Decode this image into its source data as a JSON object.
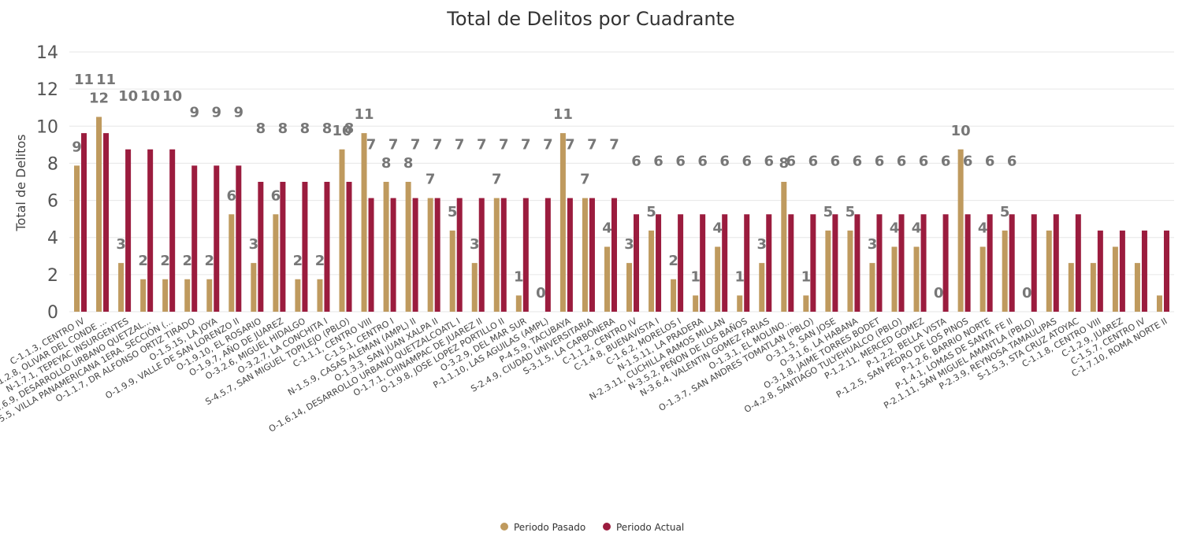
{
  "chart_data": {
    "type": "bar",
    "title": "Total de Delitos por Cuadrante",
    "xlabel": "",
    "ylabel": "Total de Delitos",
    "ylim": [
      0,
      14
    ],
    "yticks": [
      0,
      2,
      4,
      6,
      8,
      10,
      12,
      14
    ],
    "grid": true,
    "legend_position": "bottom-center",
    "categories": [
      "C-1.1.3, CENTRO IV",
      "P-1.2.8, OLIVAR DEL CONDE ...",
      "N-1.7.1, TEPEYAC INSURGENTES",
      "O-1.6.9, DESARROLLO URBANO QUETZAL...",
      "S-2.5.5, VILLA PANAMERICANA 1ERA. SECCIÓN (...",
      "O-1.1.7, DR ALFONSO ORTIZ TIRADO",
      "O-1.5.15, LA JOYA",
      "O-1.9.9, VALLE DE SAN LORENZO II",
      "O-1.9.10, EL ROSARIO",
      "O-1.9.7, AÑO DE JUAREZ",
      "O-3.2.6, MIGUEL HIDALGO",
      "O-3.2.7, LA CONCHITA I",
      "S-4.5.7, SAN MIGUEL TOPILEJO (PBLO)",
      "C-1.1.1, CENTRO VIII",
      "C-1.5.1, CENTRO I",
      "N-1.5.9, CASAS ALEMAN (AMPL) II",
      "O-1.3.3, SAN JUAN XALPA II",
      "O-1.6.14, DESARROLLO URBANO QUETZALCOATL I",
      "O-1.7.1, CHINAMPAC DE JUAREZ II",
      "O-1.9.8, JOSE LOPEZ PORTILLO II",
      "O-3.2.9, DEL MAR SUR",
      "P-1.1.10, LAS AGUILAS (AMPL)",
      "P-4.5.9, TACUBAYA",
      "S-2.4.9, CIUDAD UNIVERSITARIA",
      "S-3.1.5, LA CARBONERA",
      "C-1.1.2, CENTRO IV",
      "C-1.4.8, BUENAVISTA I",
      "C-1.6.2, MORELOS I",
      "N-1.5.11, LA PRADERA",
      "N-2.3.11, CUCHILLA RAMOS MILLAN",
      "N-3.5.2, PEÑON DE LOS BAÑOS",
      "N-3.6.4, VALENTIN GOMEZ FARIAS",
      "O-1.3.1, EL MOLINO...",
      "O-1.3.7, SAN ANDRES TOMATLAN (PBLO)",
      "O-3.1.5, SAN JOSE",
      "O-3.1.6, LA HABANA",
      "O-3.1.8, JAIME TORRES BODET",
      "O-4.2.8, SANTIAGO TULYEHUALCO (PBLO)",
      "P-1.2.11, MERCED GOMEZ",
      "P-1.2.2, BELLA VISTA",
      "P-1.2.5, SAN PEDRO DE LOS PINOS",
      "P-1.2.6, BARRIO NORTE",
      "P-1.4.1, LOMAS DE SANTA FE II",
      "P-2.1.11, SAN MIGUEL AMANTLA (PBLO)",
      "P-2.3.9, REYNOSA TAMAULIPAS",
      "S-1.5.3, STA CRUZ ATOYAC",
      "C-1.1.8, CENTRO VIII",
      "C-1.2.9, JUAREZ",
      "C-1.5.7, CENTRO IV",
      "C-1.7.10, ROMA NORTE II"
    ],
    "series": [
      {
        "name": "Periodo Pasado",
        "color": "#bf9a5e",
        "values": [
          9,
          12,
          3,
          2,
          2,
          2,
          2,
          6,
          3,
          6,
          2,
          2,
          10,
          11,
          8,
          8,
          7,
          5,
          3,
          7,
          1,
          0,
          11,
          7,
          4,
          3,
          5,
          2,
          1,
          4,
          1,
          3,
          8,
          1,
          5,
          5,
          3,
          4,
          4,
          0,
          10,
          4,
          5,
          0,
          5,
          3,
          3,
          4,
          3,
          1
        ]
      },
      {
        "name": "Periodo Actual",
        "color": "#9b1c3e",
        "values": [
          11,
          11,
          10,
          10,
          10,
          9,
          9,
          9,
          8,
          8,
          8,
          8,
          8,
          7,
          7,
          7,
          7,
          7,
          7,
          7,
          7,
          7,
          7,
          7,
          7,
          6,
          6,
          6,
          6,
          6,
          6,
          6,
          6,
          6,
          6,
          6,
          6,
          6,
          6,
          6,
          6,
          6,
          6,
          6,
          6,
          6,
          5,
          5,
          5,
          5
        ]
      }
    ],
    "data_labels": [
      "9",
      "12",
      "3",
      "10",
      "2",
      "10",
      "2",
      "10",
      "2",
      "9",
      "2",
      "9",
      "6",
      "9",
      "3",
      "8",
      "6",
      "8",
      "2",
      "8",
      "2",
      "8",
      "10",
      "8",
      "11",
      "7",
      "8",
      "8",
      "7",
      "5",
      "7",
      "3",
      "7",
      "7",
      "1",
      "7",
      "0",
      "7",
      "11",
      "7",
      "7",
      "4",
      "7",
      "3",
      "6",
      "6",
      "2",
      "6",
      "1",
      "6",
      "4",
      "6",
      "1",
      "6",
      "3",
      "6",
      "8",
      "6",
      "1",
      "6",
      "6",
      "6",
      "3",
      "6",
      "4",
      "6",
      "4",
      "6",
      "0",
      "6",
      "10",
      "6",
      "4",
      "6",
      "6",
      "0",
      "6",
      "6",
      "3",
      "6",
      "3",
      "5",
      "5",
      "3",
      "5",
      "1",
      "5"
    ]
  }
}
